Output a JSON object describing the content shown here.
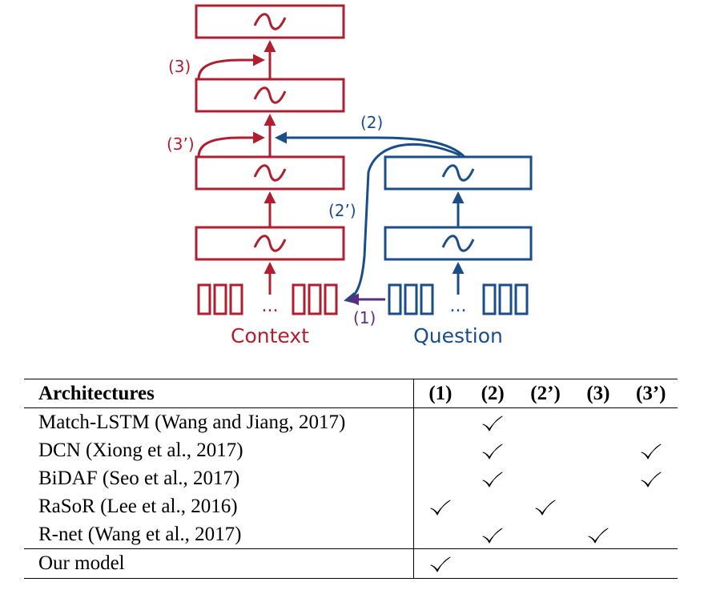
{
  "diagram": {
    "context_label": "Context",
    "question_label": "Question",
    "ellipsis": "...",
    "edge_labels": {
      "e1": "(1)",
      "e2": "(2)",
      "e2p": "(2’)",
      "e3": "(3)",
      "e3p": "(3’)"
    },
    "colors": {
      "context": "#b01e2f",
      "question": "#1b4d89",
      "attention": "#5a2d82"
    }
  },
  "table": {
    "header": {
      "architectures": "Architectures",
      "cols": [
        "(1)",
        "(2)",
        "(2’)",
        "(3)",
        "(3’)"
      ]
    },
    "rows": [
      {
        "name": "Match-LSTM (Wang and Jiang, 2017)",
        "marks": [
          false,
          true,
          false,
          false,
          false
        ]
      },
      {
        "name": "DCN (Xiong et al., 2017)",
        "marks": [
          false,
          true,
          false,
          false,
          true
        ]
      },
      {
        "name": "BiDAF (Seo et al., 2017)",
        "marks": [
          false,
          true,
          false,
          false,
          true
        ]
      },
      {
        "name": "RaSoR (Lee et al., 2016)",
        "marks": [
          true,
          false,
          true,
          false,
          false
        ]
      },
      {
        "name": "R-net (Wang et al., 2017)",
        "marks": [
          false,
          true,
          false,
          true,
          false
        ]
      }
    ],
    "ours": {
      "name": "Our model",
      "marks": [
        true,
        false,
        false,
        false,
        false
      ]
    }
  }
}
